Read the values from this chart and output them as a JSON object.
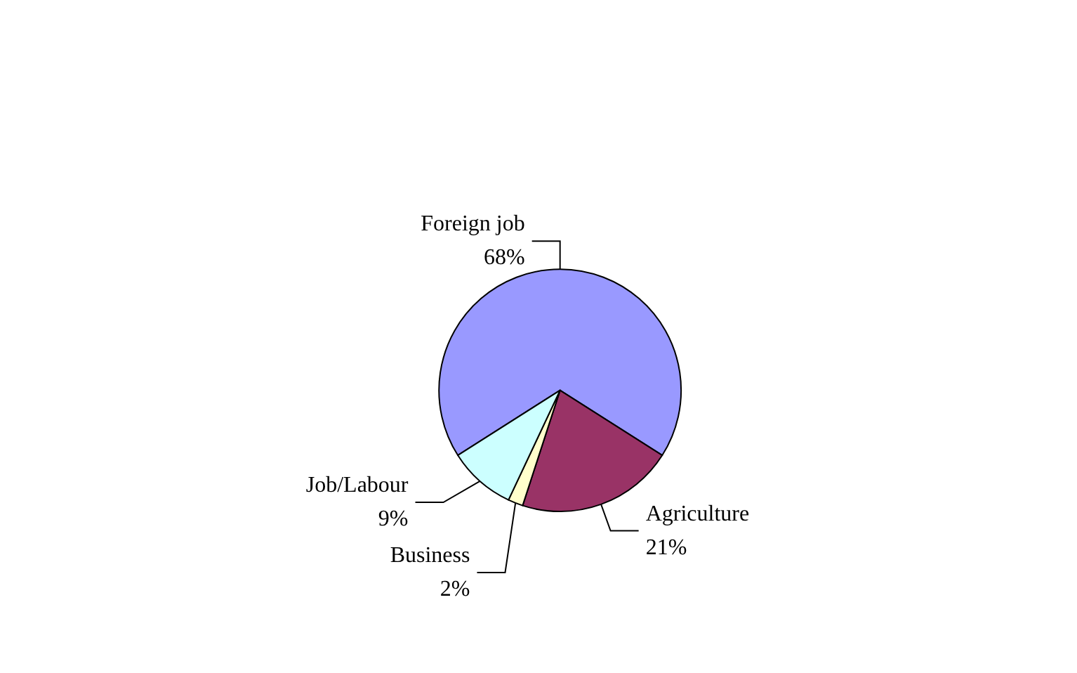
{
  "chart_data": {
    "type": "pie",
    "categories": [
      "Foreign job",
      "Agriculture",
      "Business",
      "Job/Labour"
    ],
    "values": [
      68,
      21,
      2,
      9
    ],
    "value_labels": [
      "68%",
      "21%",
      "2%",
      "9%"
    ],
    "colors": [
      "#9999ff",
      "#993366",
      "#ffffcc",
      "#ccffff"
    ]
  }
}
